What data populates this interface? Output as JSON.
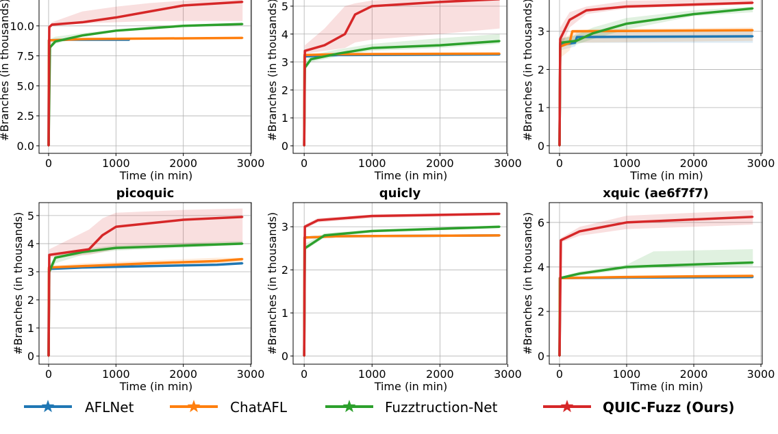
{
  "colors": {
    "AFLNet": "#1f77b4",
    "ChatAFL": "#ff7f0e",
    "Fuzztruction-Net": "#2ca02c",
    "QUIC-Fuzz (Ours)": "#d62728"
  },
  "legend": {
    "placement": "bottom",
    "items": [
      "AFLNet",
      "ChatAFL",
      "Fuzztruction-Net",
      "QUIC-Fuzz (Ours)"
    ]
  },
  "chart_data": [
    {
      "type": "line",
      "title": "",
      "xlabel": "Time (in min)",
      "ylabel": "#Branches (in thousands)",
      "xlim": [
        -142,
        3010
      ],
      "ylim": [
        -0.63,
        13.3
      ],
      "xticks": [
        "0",
        "1000",
        "2000",
        "3000"
      ],
      "yticks": [
        "0.0",
        "2.5",
        "5.0",
        "7.5",
        "10.0"
      ],
      "series": [
        {
          "name": "AFLNet",
          "x": [
            0,
            5,
            300,
            1200
          ],
          "y": [
            0,
            8.8,
            8.85,
            8.85
          ]
        },
        {
          "name": "ChatAFL",
          "x": [
            0,
            5,
            500,
            2880
          ],
          "y": [
            0,
            8.8,
            8.9,
            9.0
          ]
        },
        {
          "name": "Fuzztruction-Net",
          "x": [
            0,
            20,
            100,
            500,
            1000,
            1500,
            2000,
            2880
          ],
          "y": [
            0,
            8.2,
            8.7,
            9.2,
            9.6,
            9.8,
            10.0,
            10.15
          ],
          "band_lo": [
            0,
            8.1,
            8.5,
            9.1,
            9.5,
            9.7,
            9.95,
            10.1
          ],
          "band_hi": [
            0,
            8.9,
            9.1,
            9.4,
            9.7,
            9.95,
            10.1,
            10.25
          ]
        },
        {
          "name": "QUIC-Fuzz (Ours)",
          "x": [
            0,
            10,
            50,
            500,
            1000,
            1500,
            2000,
            2880
          ],
          "y": [
            0,
            9.9,
            10.1,
            10.3,
            10.7,
            11.2,
            11.7,
            12.0
          ],
          "band_lo": [
            0,
            9.9,
            10.0,
            10.2,
            10.3,
            10.4,
            10.4,
            10.4
          ],
          "band_hi": [
            0,
            10.0,
            10.3,
            11.2,
            11.6,
            11.9,
            12.1,
            12.3
          ]
        }
      ]
    },
    {
      "type": "line",
      "title": "",
      "xlabel": "Time (in min)",
      "ylabel": "#Branches (in thousands)",
      "xlim": [
        -163,
        2985
      ],
      "ylim": [
        -0.27,
        5.71
      ],
      "xticks": [
        "0",
        "1000",
        "2000",
        "3000"
      ],
      "yticks": [
        "0",
        "1",
        "2",
        "3",
        "4",
        "5"
      ],
      "series": [
        {
          "name": "AFLNet",
          "x": [
            0,
            5,
            500,
            2880
          ],
          "y": [
            0,
            3.2,
            3.25,
            3.27
          ]
        },
        {
          "name": "ChatAFL",
          "x": [
            0,
            5,
            500,
            2880
          ],
          "y": [
            0,
            3.25,
            3.28,
            3.3
          ]
        },
        {
          "name": "Fuzztruction-Net",
          "x": [
            0,
            10,
            100,
            500,
            1000,
            2000,
            2880
          ],
          "y": [
            0,
            2.8,
            3.1,
            3.3,
            3.5,
            3.6,
            3.75
          ],
          "band_lo": [
            0,
            2.7,
            3.0,
            3.2,
            3.4,
            3.5,
            3.65
          ],
          "band_hi": [
            0,
            3.0,
            3.25,
            3.45,
            3.65,
            3.85,
            4.0
          ]
        },
        {
          "name": "QUIC-Fuzz (Ours)",
          "x": [
            0,
            10,
            300,
            600,
            750,
            1000,
            2000,
            2880
          ],
          "y": [
            0,
            3.4,
            3.6,
            4.0,
            4.7,
            5.0,
            5.15,
            5.25
          ],
          "band_lo": [
            0,
            3.3,
            3.4,
            3.5,
            3.7,
            3.8,
            4.0,
            4.2
          ],
          "band_hi": [
            0,
            3.6,
            4.2,
            5.0,
            5.1,
            5.2,
            5.3,
            5.35
          ]
        }
      ]
    },
    {
      "type": "line",
      "title": "",
      "xlabel": "Time (in min)",
      "ylabel": "#Branches (in thousands)",
      "xlim": [
        -153,
        3020
      ],
      "ylim": [
        -0.2,
        4.18
      ],
      "xticks": [
        "0",
        "1000",
        "2000",
        "3000"
      ],
      "yticks": [
        "0",
        "1",
        "2",
        "3"
      ],
      "series": [
        {
          "name": "AFLNet",
          "x": [
            0,
            10,
            230,
            260,
            2880
          ],
          "y": [
            0,
            2.65,
            2.7,
            2.85,
            2.87
          ],
          "band_lo": [
            0,
            2.5,
            2.6,
            2.7,
            2.7
          ],
          "band_hi": [
            0,
            2.8,
            2.9,
            3.0,
            3.0
          ]
        },
        {
          "name": "ChatAFL",
          "x": [
            0,
            10,
            150,
            190,
            2880
          ],
          "y": [
            0,
            2.6,
            2.7,
            3.0,
            3.03
          ],
          "band_lo": [
            0,
            2.3,
            2.5,
            2.7,
            2.75
          ],
          "band_hi": [
            0,
            2.8,
            2.9,
            3.05,
            3.1
          ]
        },
        {
          "name": "Fuzztruction-Net",
          "x": [
            0,
            10,
            250,
            500,
            1000,
            2000,
            2880
          ],
          "y": [
            0,
            2.7,
            2.75,
            2.95,
            3.2,
            3.45,
            3.6
          ],
          "band_lo": [
            0,
            2.6,
            2.65,
            2.8,
            3.05,
            3.4,
            3.5
          ],
          "band_hi": [
            0,
            2.8,
            2.9,
            3.1,
            3.35,
            3.55,
            3.65
          ]
        },
        {
          "name": "QUIC-Fuzz (Ours)",
          "x": [
            0,
            10,
            150,
            400,
            1000,
            2880
          ],
          "y": [
            0,
            2.8,
            3.3,
            3.55,
            3.65,
            3.75
          ],
          "band_lo": [
            0,
            2.5,
            3.1,
            3.45,
            3.6,
            3.7
          ],
          "band_hi": [
            0,
            3.1,
            3.5,
            3.65,
            3.8,
            3.85
          ]
        }
      ]
    },
    {
      "type": "line",
      "title": "picoquic",
      "xlabel": "Time (in min)",
      "ylabel": "#Branches (in thousands)",
      "xlim": [
        -142,
        3010
      ],
      "ylim": [
        -0.29,
        5.46
      ],
      "xticks": [
        "0",
        "1000",
        "2000",
        "3000"
      ],
      "yticks": [
        "0",
        "1",
        "2",
        "3",
        "4",
        "5"
      ],
      "series": [
        {
          "name": "AFLNet",
          "x": [
            0,
            5,
            500,
            1500,
            2500,
            2880
          ],
          "y": [
            0,
            3.1,
            3.15,
            3.2,
            3.25,
            3.3
          ]
        },
        {
          "name": "ChatAFL",
          "x": [
            0,
            5,
            500,
            1500,
            2500,
            2880
          ],
          "y": [
            0,
            3.15,
            3.2,
            3.3,
            3.38,
            3.45
          ],
          "band_lo": [
            0,
            3.1,
            3.15,
            3.2,
            3.3,
            3.35
          ],
          "band_hi": [
            0,
            3.2,
            3.3,
            3.4,
            3.5,
            3.5
          ]
        },
        {
          "name": "Fuzztruction-Net",
          "x": [
            0,
            10,
            100,
            500,
            1000,
            2880
          ],
          "y": [
            0,
            3.0,
            3.5,
            3.7,
            3.85,
            4.0
          ],
          "band_lo": [
            0,
            2.9,
            3.3,
            3.6,
            3.75,
            3.95
          ],
          "band_hi": [
            0,
            3.2,
            3.6,
            3.8,
            3.95,
            4.1
          ]
        },
        {
          "name": "QUIC-Fuzz (Ours)",
          "x": [
            0,
            10,
            600,
            800,
            1000,
            2000,
            2880
          ],
          "y": [
            0,
            3.6,
            3.8,
            4.3,
            4.6,
            4.85,
            4.95
          ],
          "band_lo": [
            0,
            3.5,
            3.6,
            3.7,
            3.8,
            3.9,
            4.0
          ],
          "band_hi": [
            0,
            3.8,
            4.5,
            4.9,
            5.1,
            5.2,
            5.25
          ]
        }
      ]
    },
    {
      "type": "line",
      "title": "quicly",
      "xlabel": "Time (in min)",
      "ylabel": "#Branches (in thousands)",
      "xlim": [
        -163,
        2985
      ],
      "ylim": [
        -0.19,
        3.56
      ],
      "xticks": [
        "0",
        "1000",
        "2000",
        "3000"
      ],
      "yticks": [
        "0",
        "1",
        "2",
        "3"
      ],
      "series": [
        {
          "name": "AFLNet",
          "x": [
            0,
            5,
            500,
            2880
          ],
          "y": [
            0,
            2.75,
            2.78,
            2.8
          ]
        },
        {
          "name": "ChatAFL",
          "x": [
            0,
            5,
            500,
            2880
          ],
          "y": [
            0,
            2.75,
            2.78,
            2.8
          ]
        },
        {
          "name": "Fuzztruction-Net",
          "x": [
            0,
            10,
            300,
            1000,
            2880
          ],
          "y": [
            0,
            2.5,
            2.8,
            2.9,
            3.0
          ],
          "band_lo": [
            0,
            2.45,
            2.75,
            2.87,
            2.97
          ],
          "band_hi": [
            0,
            2.6,
            2.85,
            2.93,
            3.03
          ]
        },
        {
          "name": "QUIC-Fuzz (Ours)",
          "x": [
            0,
            10,
            200,
            1000,
            2880
          ],
          "y": [
            0,
            3.0,
            3.15,
            3.25,
            3.3
          ],
          "band_lo": [
            0,
            2.95,
            3.1,
            3.2,
            3.27
          ],
          "band_hi": [
            0,
            3.05,
            3.2,
            3.28,
            3.33
          ]
        }
      ]
    },
    {
      "type": "line",
      "title": "xquic (ae6f7f7)",
      "xlabel": "Time (in min)",
      "ylabel": "#Branches (in thousands)",
      "xlim": [
        -153,
        3020
      ],
      "ylim": [
        -0.37,
        6.89
      ],
      "xticks": [
        "0",
        "1000",
        "2000",
        "3000"
      ],
      "yticks": [
        "0",
        "2",
        "4",
        "6"
      ],
      "series": [
        {
          "name": "AFLNet",
          "x": [
            0,
            5,
            1000,
            2880
          ],
          "y": [
            0,
            3.5,
            3.52,
            3.55
          ]
        },
        {
          "name": "ChatAFL",
          "x": [
            0,
            5,
            1000,
            2880
          ],
          "y": [
            0,
            3.5,
            3.55,
            3.6
          ]
        },
        {
          "name": "Fuzztruction-Net",
          "x": [
            0,
            10,
            300,
            1000,
            1400,
            2880
          ],
          "y": [
            0,
            3.5,
            3.7,
            4.0,
            4.05,
            4.2
          ],
          "band_lo": [
            0,
            3.45,
            3.6,
            3.9,
            3.95,
            4.05
          ],
          "band_hi": [
            0,
            3.55,
            3.8,
            4.1,
            4.7,
            4.8
          ]
        },
        {
          "name": "QUIC-Fuzz (Ours)",
          "x": [
            0,
            20,
            300,
            1000,
            2880
          ],
          "y": [
            0,
            5.2,
            5.6,
            6.0,
            6.25
          ],
          "band_lo": [
            0,
            5.1,
            5.4,
            5.7,
            5.9
          ],
          "band_hi": [
            0,
            5.3,
            5.8,
            6.3,
            6.55
          ]
        }
      ]
    }
  ]
}
